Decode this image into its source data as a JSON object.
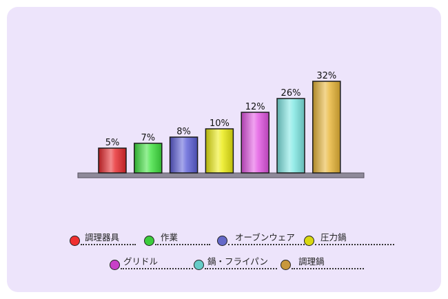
{
  "chart_data": {
    "type": "bar",
    "categories": [
      "調理器具",
      "作業",
      "オーブンウェア",
      "圧力鍋",
      "グリドル",
      "鍋・フライパン",
      "調理鍋"
    ],
    "values": [
      5,
      7,
      8,
      10,
      12,
      26,
      32
    ],
    "labels": [
      "5%",
      "7%",
      "8%",
      "10%",
      "12%",
      "26%",
      "32%"
    ],
    "colors": [
      "#e8282c",
      "#3ee23e",
      "#5d5fd8",
      "#ecec10",
      "#e455e4",
      "#7ee8e4",
      "#e8b536"
    ],
    "legend_colors": [
      "#f03030",
      "#3ccc3c",
      "#6468c8",
      "#d8d810",
      "#c840c8",
      "#66ccc8",
      "#c8983c"
    ],
    "title": "",
    "xlabel": "",
    "ylabel": "",
    "legend_placement": "bottom"
  }
}
